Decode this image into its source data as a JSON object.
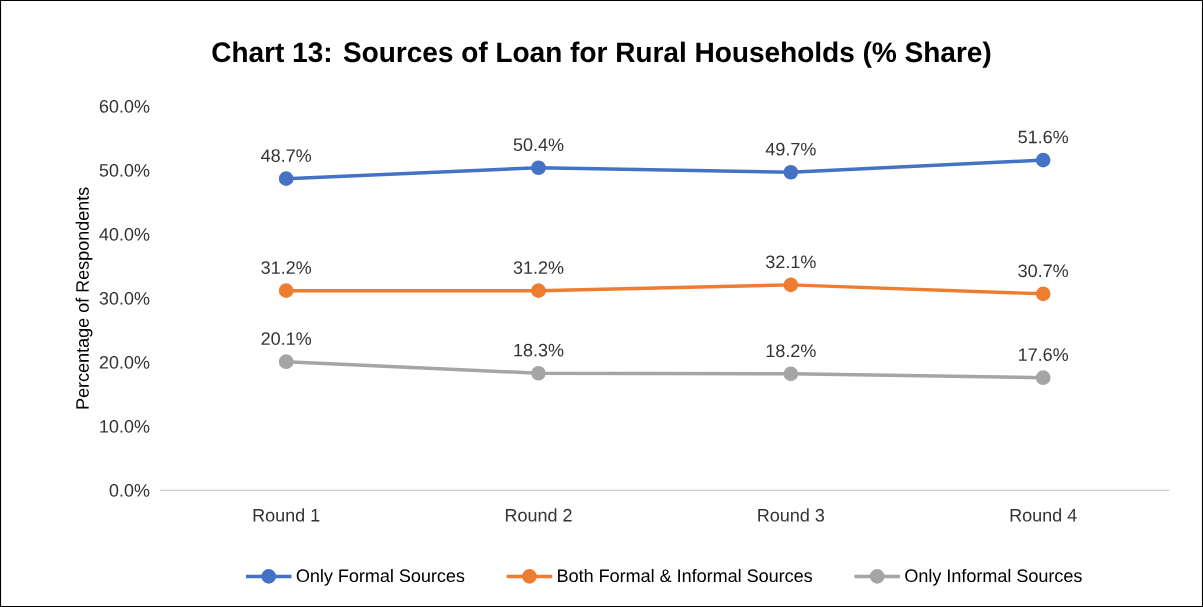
{
  "chart_data": {
    "type": "line",
    "title": "Chart 13: Sources of Loan for Rural Households (% Share)",
    "ylabel": "Percentage of Respondents",
    "categories": [
      "Round 1",
      "Round 2",
      "Round 3",
      "Round 4"
    ],
    "series": [
      {
        "name": "Only Formal Sources",
        "color": "#4472c4",
        "values": [
          48.7,
          50.4,
          49.7,
          51.6
        ],
        "value_labels": [
          "48.7%",
          "50.4%",
          "49.7%",
          "51.6%"
        ]
      },
      {
        "name": "Both Formal & Informal Sources",
        "color": "#ed7d31",
        "values": [
          31.2,
          31.2,
          32.1,
          30.7
        ],
        "value_labels": [
          "31.2%",
          "31.2%",
          "32.1%",
          "30.7%"
        ]
      },
      {
        "name": "Only Informal Sources",
        "color": "#a5a5a5",
        "values": [
          20.1,
          18.3,
          18.2,
          17.6
        ],
        "value_labels": [
          "20.1%",
          "18.3%",
          "18.2%",
          "17.6%"
        ]
      }
    ],
    "ylim": [
      0,
      60
    ],
    "yticks": [
      {
        "value": 0,
        "label": "0.0%"
      },
      {
        "value": 10,
        "label": "10.0%"
      },
      {
        "value": 20,
        "label": "20.0%"
      },
      {
        "value": 30,
        "label": "30.0%"
      },
      {
        "value": 40,
        "label": "40.0%"
      },
      {
        "value": 50,
        "label": "50.0%"
      },
      {
        "value": 60,
        "label": "60.0%"
      }
    ],
    "grid": false,
    "legend": "bottom",
    "marker": "circle",
    "line_style": "solid"
  }
}
